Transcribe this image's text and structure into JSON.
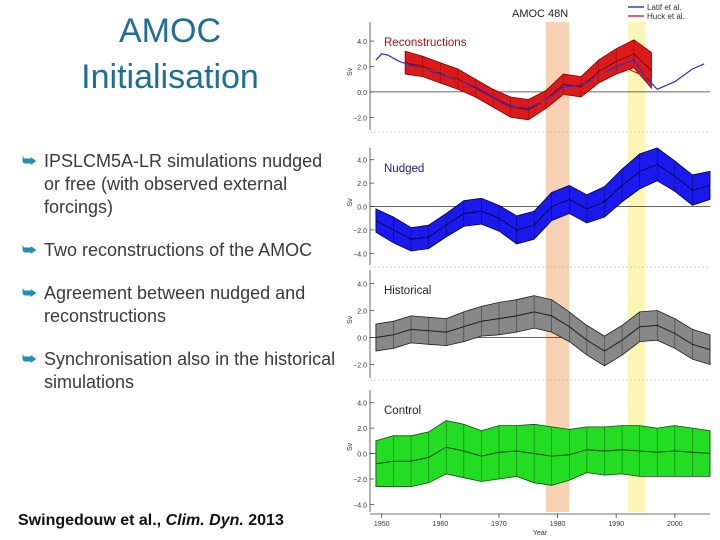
{
  "slide": {
    "title_line1": "AMOC",
    "title_line2": "Initialisation",
    "bullets": [
      "IPSLCM5A-LR simulations nudged or free (with observed external forcings)",
      "Two reconstructions of the AMOC",
      "Agreement between nudged and reconstructions",
      "Synchronisation also in the historical simulations"
    ],
    "citation": {
      "authors": "Swingedouw et al., ",
      "journal": "Clim. Dyn.",
      "year": " 2013"
    }
  },
  "colors": {
    "title": "#1f6f94",
    "bullet_mark": "#1f8fb3",
    "reconstructions": "#dd1a1a",
    "nudged": "#1a1aee",
    "historical": "#888888",
    "control": "#22dd22",
    "highlight_1": "#f6c9a6",
    "highlight_2": "#fbf5a8"
  },
  "chart_data": {
    "type": "line",
    "title": "AMOC  48N",
    "xlabel": "Year",
    "ylabel": "Sv",
    "xlim": [
      1948,
      2006
    ],
    "x_ticks": [
      1950,
      1960,
      1970,
      1980,
      1990,
      2000
    ],
    "x_tick_labels": [
      "1950",
      "1960",
      "1970",
      "1980",
      "1990",
      "2000"
    ],
    "highlight_periods": [
      [
        1978,
        1982
      ],
      [
        1992,
        1995
      ]
    ],
    "legend": [
      "Latif et al.",
      "Huck et al."
    ],
    "panels": [
      {
        "label": "Reconstructions",
        "y_ticks": [
          4.0,
          2.0,
          0.0,
          -2.0
        ],
        "y_tick_labels": [
          "4.0",
          "2.0",
          "0.0",
          "−2.0"
        ],
        "ylim": [
          -3.0,
          5.5
        ],
        "ensemble": {
          "x": [
            1954,
            1957,
            1960,
            1963,
            1966,
            1969,
            1972,
            1975,
            1978,
            1981,
            1984,
            1987,
            1990,
            1993,
            1996
          ],
          "mean": [
            2.3,
            2.0,
            1.5,
            1.0,
            0.3,
            -0.5,
            -1.2,
            -1.4,
            -0.6,
            0.6,
            0.4,
            1.6,
            2.4,
            3.0,
            1.7
          ],
          "spread": [
            0.9,
            0.8,
            0.8,
            0.8,
            0.7,
            0.7,
            0.8,
            0.8,
            0.7,
            0.8,
            0.8,
            0.9,
            1.0,
            1.1,
            1.4
          ]
        },
        "lines": [
          {
            "name": "Latif et al.",
            "x": [
              1949,
              1950,
              1951,
              1953,
              1955,
              1957,
              1960,
              1963,
              1966,
              1969,
              1972,
              1975,
              1978,
              1981,
              1984,
              1987,
              1990,
              1993,
              1995,
              1997,
              2000,
              2003,
              2005
            ],
            "y": [
              2.5,
              3.0,
              2.9,
              2.4,
              2.1,
              1.8,
              1.4,
              0.9,
              0.4,
              -0.4,
              -1.1,
              -1.3,
              -0.6,
              0.4,
              0.5,
              1.3,
              2.0,
              2.5,
              1.2,
              0.2,
              0.8,
              1.8,
              2.2
            ],
            "color": "#2b2bcc"
          },
          {
            "name": "Huck et al.",
            "x": [
              1954,
              1960,
              1966,
              1972,
              1978,
              1984,
              1990,
              1996
            ],
            "y": [
              2.0,
              1.6,
              0.2,
              -1.3,
              -0.7,
              0.3,
              2.2,
              1.0
            ],
            "color": "#cc2222"
          }
        ]
      },
      {
        "label": "Nudged",
        "y_ticks": [
          4.0,
          2.0,
          0.0,
          -2.0,
          -4.0
        ],
        "y_tick_labels": [
          "4.0",
          "2.0",
          "0.0",
          "−2.0",
          "−4.0"
        ],
        "ylim": [
          -5.0,
          5.0
        ],
        "ensemble": {
          "x": [
            1949,
            1952,
            1955,
            1958,
            1961,
            1964,
            1967,
            1970,
            1973,
            1976,
            1979,
            1982,
            1985,
            1988,
            1991,
            1994,
            1997,
            2000,
            2003,
            2006
          ],
          "mean": [
            -1.2,
            -2.0,
            -2.8,
            -2.6,
            -1.6,
            -0.6,
            -0.4,
            -1.0,
            -2.0,
            -1.6,
            0.0,
            0.6,
            -0.2,
            0.4,
            1.8,
            3.0,
            3.6,
            2.6,
            1.4,
            1.8
          ],
          "spread": [
            1.0,
            1.1,
            1.0,
            1.0,
            1.0,
            1.1,
            1.1,
            1.1,
            1.2,
            1.2,
            1.2,
            1.2,
            1.2,
            1.3,
            1.4,
            1.5,
            1.4,
            1.3,
            1.3,
            1.2
          ]
        }
      },
      {
        "label": "Historical",
        "y_ticks": [
          4.0,
          2.0,
          0.0,
          -2.0
        ],
        "y_tick_labels": [
          "4.0",
          "2.0",
          "0.0",
          "−2.0"
        ],
        "ylim": [
          -3.0,
          5.0
        ],
        "ensemble": {
          "x": [
            1949,
            1952,
            1955,
            1958,
            1961,
            1964,
            1967,
            1970,
            1973,
            1976,
            1979,
            1982,
            1985,
            1988,
            1991,
            1994,
            1997,
            2000,
            2003,
            2006
          ],
          "mean": [
            0.0,
            0.2,
            0.6,
            0.5,
            0.4,
            0.8,
            1.2,
            1.4,
            1.6,
            1.9,
            1.6,
            0.8,
            -0.2,
            -1.0,
            -0.2,
            0.8,
            0.9,
            0.3,
            -0.5,
            -0.9
          ],
          "spread": [
            1.0,
            1.0,
            1.0,
            1.0,
            1.0,
            1.1,
            1.1,
            1.2,
            1.2,
            1.2,
            1.2,
            1.1,
            1.1,
            1.1,
            1.1,
            1.1,
            1.1,
            1.1,
            1.1,
            1.1
          ]
        }
      },
      {
        "label": "Control",
        "y_ticks": [
          4.0,
          2.0,
          0.0,
          -2.0,
          -4.0
        ],
        "y_tick_labels": [
          "4.0",
          "2.0",
          "0.0",
          "−2.0",
          "−4.0"
        ],
        "ylim": [
          -4.6,
          5.0
        ],
        "ensemble": {
          "x": [
            1949,
            1952,
            1955,
            1958,
            1961,
            1964,
            1967,
            1970,
            1973,
            1976,
            1979,
            1982,
            1985,
            1988,
            1991,
            1994,
            1997,
            2000,
            2003,
            2006
          ],
          "mean": [
            -0.8,
            -0.6,
            -0.6,
            -0.3,
            0.5,
            0.2,
            -0.2,
            0.1,
            0.2,
            0.0,
            -0.2,
            -0.1,
            0.3,
            0.2,
            0.3,
            0.2,
            0.1,
            0.2,
            0.1,
            0.0
          ],
          "spread": [
            1.8,
            2.0,
            2.0,
            2.0,
            2.1,
            2.1,
            2.0,
            2.1,
            2.0,
            2.3,
            2.3,
            2.0,
            1.8,
            1.9,
            1.9,
            2.0,
            1.9,
            2.0,
            1.9,
            1.8
          ]
        }
      }
    ]
  }
}
